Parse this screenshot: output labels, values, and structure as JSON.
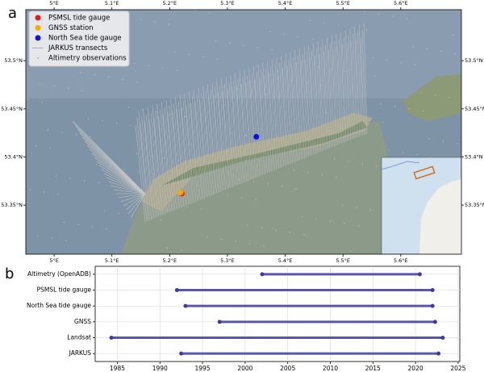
{
  "panel_labels": [
    "a",
    "b"
  ],
  "chart_data": [
    {
      "type": "map",
      "xlim": [
        4.951,
        5.705
      ],
      "ylim": [
        53.299,
        53.553
      ],
      "xticks": [
        {
          "value": 5.0,
          "label": "5°E"
        },
        {
          "value": 5.1,
          "label": "5.1°E"
        },
        {
          "value": 5.2,
          "label": "5.2°E"
        },
        {
          "value": 5.3,
          "label": "5.3°E"
        },
        {
          "value": 5.4,
          "label": "5.4°E"
        },
        {
          "value": 5.5,
          "label": "5.5°E"
        },
        {
          "value": 5.6,
          "label": "5.6°E"
        }
      ],
      "yticks": [
        {
          "value": 53.35,
          "label": "53.35°N"
        },
        {
          "value": 53.4,
          "label": "53.4°N"
        },
        {
          "value": 53.45,
          "label": "53.45°N"
        },
        {
          "value": 53.5,
          "label": "53.5°N"
        }
      ],
      "series": [
        {
          "name": "PSMSL tide gauge",
          "color": "#e41a1c",
          "x": [
            5.221
          ],
          "y": [
            53.362
          ]
        },
        {
          "name": "GNSS station",
          "color": "#ffa500",
          "x": [
            5.219
          ],
          "y": [
            53.363
          ]
        },
        {
          "name": "North Sea tide gauge",
          "color": "#1010e0",
          "x": [
            5.35
          ],
          "y": [
            53.421
          ]
        },
        {
          "name": "JARKUS transects",
          "color": "#b0b0b0"
        },
        {
          "name": "Altimetry observations",
          "color": "#b0b0b0"
        }
      ]
    },
    {
      "type": "range",
      "categories": [
        "Altimetry (OpenADB)",
        "PSMSL tide gauge",
        "North Sea tide gauge",
        "GNSS",
        "Landsat",
        "JARKUS"
      ],
      "start": [
        2002,
        1992,
        1993,
        1997,
        1984.3,
        1992.5
      ],
      "end": [
        2020.5,
        2022,
        2022,
        2022.3,
        2023.2,
        2022.7
      ],
      "color": "#3b3ba0",
      "xlim": [
        1982.4,
        2025.2
      ],
      "xticks": [
        1985,
        1990,
        1995,
        2000,
        2005,
        2010,
        2015,
        2020,
        2025
      ],
      "grid": true
    }
  ]
}
